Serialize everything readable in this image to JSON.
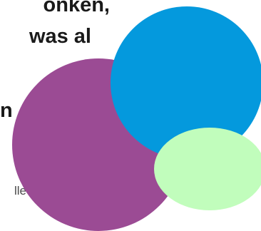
{
  "headline": {
    "line1": "onken,",
    "line2": "was al",
    "line3": "n"
  },
  "body_fragment": "lle",
  "colors": {
    "purple": "#9b4b94",
    "blue": "#0499dd",
    "green": "#c1fdbc",
    "text": "#1a1a1a"
  }
}
